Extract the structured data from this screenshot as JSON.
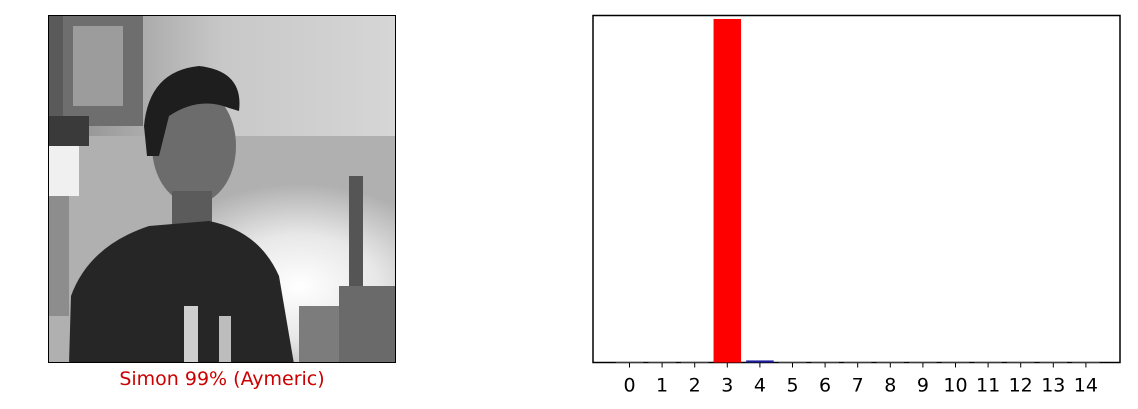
{
  "image_panel": {
    "caption": "Simon 99% (Aymeric)",
    "caption_color": "#cc0000"
  },
  "chart_data": {
    "type": "bar",
    "categories": [
      "0",
      "1",
      "2",
      "3",
      "4",
      "5",
      "6",
      "7",
      "8",
      "9",
      "10",
      "11",
      "12",
      "13",
      "14"
    ],
    "values": [
      0,
      0,
      0,
      0.99,
      0.006,
      0,
      0,
      0,
      0,
      0,
      0,
      0,
      0,
      0,
      0
    ],
    "bar_colors": [
      "#777777",
      "#777777",
      "#777777",
      "#ff0000",
      "#1f1f9f",
      "#777777",
      "#777777",
      "#777777",
      "#777777",
      "#777777",
      "#777777",
      "#777777",
      "#777777",
      "#777777",
      "#777777"
    ],
    "ylim": [
      0,
      1
    ],
    "yticks_visible": false,
    "title": "",
    "xlabel": "",
    "ylabel": "",
    "grid": false
  }
}
